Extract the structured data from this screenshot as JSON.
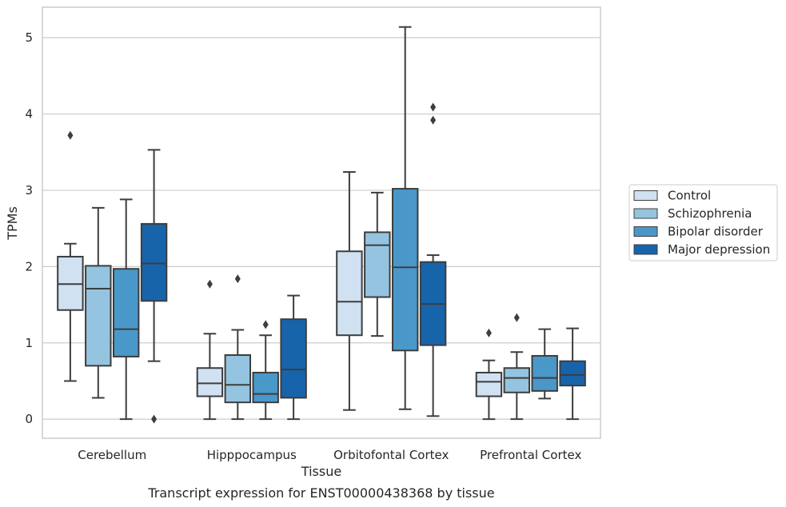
{
  "caption": "Transcript expression for ENST00000438368 by tissue",
  "chart_data": {
    "type": "box",
    "xlabel": "Tissue",
    "ylabel": "TPMs",
    "ylim": [
      -0.25,
      5.4
    ],
    "yticks": [
      0,
      1,
      2,
      3,
      4,
      5
    ],
    "grid": "horizontal",
    "legend_placement": "right",
    "categories": [
      "Cerebellum",
      "Hipppocampus",
      "Orbitofontal Cortex",
      "Prefrontal Cortex"
    ],
    "series": [
      {
        "name": "Control",
        "color": "#d0e1f2",
        "boxes": [
          {
            "whisker_low": 0.5,
            "q1": 1.43,
            "median": 1.77,
            "q3": 2.13,
            "whisker_high": 2.3,
            "outliers": [
              3.72
            ]
          },
          {
            "whisker_low": 0.0,
            "q1": 0.3,
            "median": 0.47,
            "q3": 0.67,
            "whisker_high": 1.12,
            "outliers": [
              1.77
            ]
          },
          {
            "whisker_low": 0.12,
            "q1": 1.1,
            "median": 1.54,
            "q3": 2.2,
            "whisker_high": 3.24,
            "outliers": []
          },
          {
            "whisker_low": 0.0,
            "q1": 0.3,
            "median": 0.49,
            "q3": 0.61,
            "whisker_high": 0.77,
            "outliers": [
              1.13
            ]
          }
        ]
      },
      {
        "name": "Schizophrenia",
        "color": "#94c4df",
        "boxes": [
          {
            "whisker_low": 0.28,
            "q1": 0.7,
            "median": 1.71,
            "q3": 2.01,
            "whisker_high": 2.77,
            "outliers": []
          },
          {
            "whisker_low": 0.0,
            "q1": 0.22,
            "median": 0.45,
            "q3": 0.84,
            "whisker_high": 1.17,
            "outliers": [
              1.84
            ]
          },
          {
            "whisker_low": 1.09,
            "q1": 1.6,
            "median": 2.28,
            "q3": 2.45,
            "whisker_high": 2.97,
            "outliers": []
          },
          {
            "whisker_low": 0.0,
            "q1": 0.35,
            "median": 0.54,
            "q3": 0.67,
            "whisker_high": 0.88,
            "outliers": [
              1.33
            ]
          }
        ]
      },
      {
        "name": "Bipolar disorder",
        "color": "#4a98c9",
        "boxes": [
          {
            "whisker_low": 0.0,
            "q1": 0.82,
            "median": 1.18,
            "q3": 1.97,
            "whisker_high": 2.88,
            "outliers": []
          },
          {
            "whisker_low": 0.0,
            "q1": 0.22,
            "median": 0.33,
            "q3": 0.61,
            "whisker_high": 1.1,
            "outliers": [
              1.24
            ]
          },
          {
            "whisker_low": 0.13,
            "q1": 0.9,
            "median": 1.99,
            "q3": 3.02,
            "whisker_high": 5.14,
            "outliers": []
          },
          {
            "whisker_low": 0.27,
            "q1": 0.37,
            "median": 0.54,
            "q3": 0.83,
            "whisker_high": 1.18,
            "outliers": []
          }
        ]
      },
      {
        "name": "Major depression",
        "color": "#1764ab",
        "boxes": [
          {
            "whisker_low": 0.76,
            "q1": 1.55,
            "median": 2.04,
            "q3": 2.56,
            "whisker_high": 3.53,
            "outliers": [
              0.0
            ]
          },
          {
            "whisker_low": 0.0,
            "q1": 0.28,
            "median": 0.65,
            "q3": 1.31,
            "whisker_high": 1.62,
            "outliers": []
          },
          {
            "whisker_low": 0.04,
            "q1": 0.97,
            "median": 1.51,
            "q3": 2.06,
            "whisker_high": 2.15,
            "outliers": [
              3.92,
              4.09
            ]
          },
          {
            "whisker_low": 0.0,
            "q1": 0.44,
            "median": 0.58,
            "q3": 0.76,
            "whisker_high": 1.19,
            "outliers": []
          }
        ]
      }
    ]
  }
}
